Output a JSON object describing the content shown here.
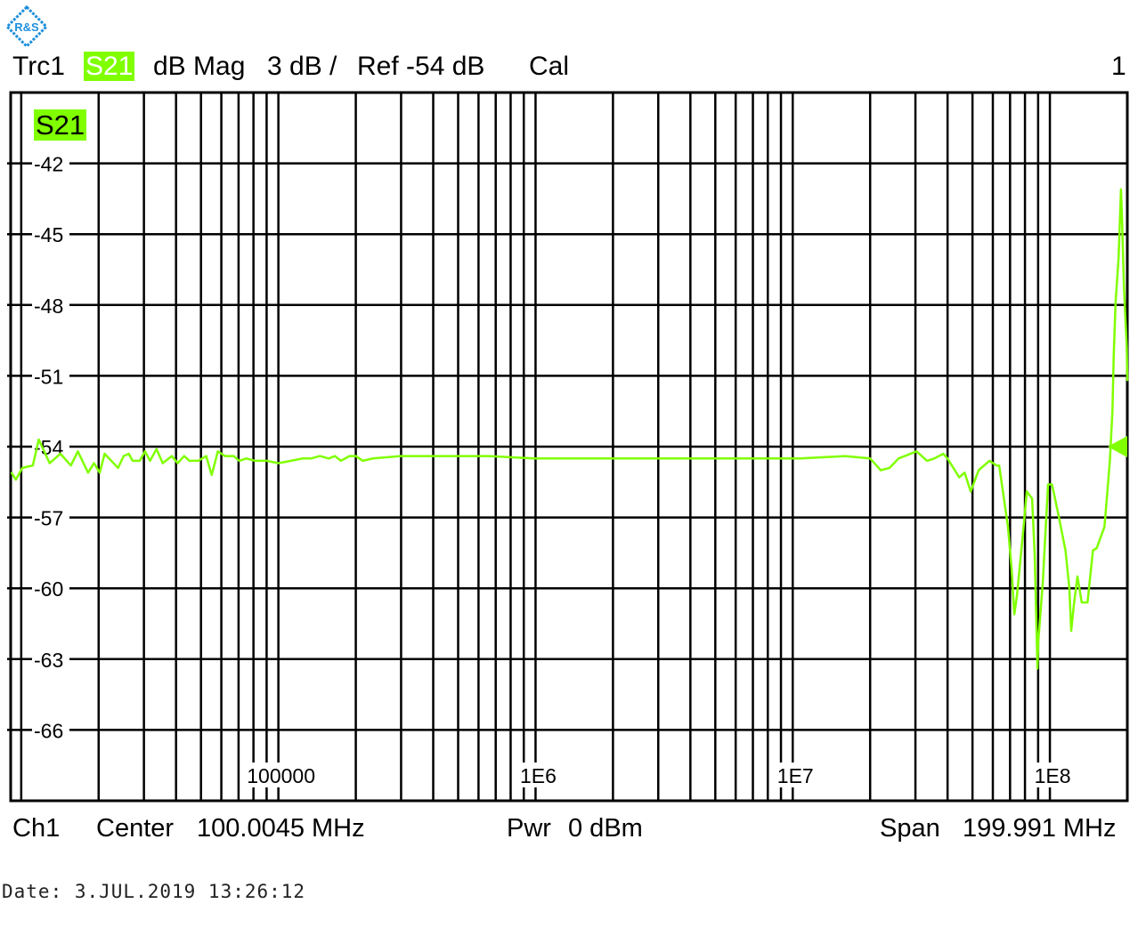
{
  "logo": {
    "text": "R&S",
    "color": "#1e8fdc"
  },
  "header": {
    "trace": "Trc1",
    "parameter": "S21",
    "format": "dB Mag",
    "scale": "3 dB /",
    "ref": "Ref -54 dB",
    "cal": "Cal",
    "window": "1"
  },
  "footer": {
    "channel": "Ch1",
    "center_label": "Center",
    "center_value": "100.0045 MHz",
    "power_label": "Pwr",
    "power_value": "0 dBm",
    "span_label": "Span",
    "span_value": "199.991 MHz"
  },
  "date": "Date: 3.JUL.2019   13:26:12",
  "colors": {
    "trace": "#80ff00",
    "grid": "#000000",
    "badge": "#80ff00"
  },
  "chart_data": {
    "type": "line",
    "trace_label": "S21",
    "x_scale": "log",
    "xlim": [
      9100,
      200000000
    ],
    "ylim": [
      -69,
      -39
    ],
    "yticks": [
      -42,
      -45,
      -48,
      -51,
      -54,
      -57,
      -60,
      -63,
      -66
    ],
    "ytick_labels": [
      "-42",
      "-45",
      "-48",
      "-51",
      "-54",
      "-57",
      "-60",
      "-63",
      "-66"
    ],
    "xticks": [
      100000,
      1000000,
      10000000,
      100000000
    ],
    "xtick_labels": [
      "100000",
      "1E6",
      "1E7",
      "1E8"
    ],
    "grid": true,
    "reference_level": -54,
    "series": [
      {
        "x": [
          9160,
          9530,
          10100,
          11100,
          11700,
          12900,
          14200,
          15600,
          16600,
          18200,
          19200,
          20200,
          21100,
          23800,
          25000,
          26200,
          27100,
          28900,
          30300,
          31700,
          33600,
          35500,
          38500,
          40600,
          43000,
          45100,
          48800,
          52400,
          55000,
          58200,
          62000,
          67100,
          70400,
          75000,
          81300,
          90200,
          100000,
          112000,
          124000,
          134000,
          145000,
          157000,
          166000,
          175000,
          189000,
          200000,
          213000,
          233000,
          298000,
          444000,
          661000,
          984000,
          1470000,
          2180000,
          3250000,
          4840000,
          7210000,
          10700000,
          16000000,
          20000000,
          22000000,
          23800000,
          25800000,
          30300000,
          33300000,
          35500000,
          38500000,
          40000000,
          44400000,
          46600000,
          49200000,
          52800000,
          58200000,
          62000000,
          63500000,
          68700000,
          71000000,
          72700000,
          74500000,
          78700000,
          81300000,
          85300000,
          87300000,
          89500000,
          90200000,
          93800000,
          96800000,
          98400000,
          102000000,
          108000000,
          115000000,
          119000000,
          121000000,
          124000000,
          128000000,
          133000000,
          140000000,
          147000000,
          152000000,
          163000000,
          165000000,
          171000000,
          175000000,
          177000000,
          180000000,
          185000000,
          189000000,
          191000000,
          194000000,
          199000000,
          200000000
        ],
        "y": [
          -55.1,
          -55.4,
          -54.9,
          -54.8,
          -53.7,
          -54.7,
          -54.3,
          -54.8,
          -54.2,
          -55.1,
          -54.7,
          -55.1,
          -54.3,
          -54.9,
          -54.4,
          -54.3,
          -54.6,
          -54.6,
          -54.2,
          -54.6,
          -54.1,
          -54.7,
          -54.4,
          -54.7,
          -54.4,
          -54.6,
          -54.6,
          -54.4,
          -55.2,
          -54.2,
          -54.4,
          -54.4,
          -54.6,
          -54.5,
          -54.6,
          -54.6,
          -54.7,
          -54.6,
          -54.5,
          -54.5,
          -54.4,
          -54.5,
          -54.4,
          -54.6,
          -54.4,
          -54.4,
          -54.6,
          -54.5,
          -54.4,
          -54.4,
          -54.4,
          -54.5,
          -54.5,
          -54.5,
          -54.5,
          -54.5,
          -54.5,
          -54.5,
          -54.4,
          -54.5,
          -55.0,
          -54.9,
          -54.5,
          -54.2,
          -54.6,
          -54.5,
          -54.3,
          -54.5,
          -55.3,
          -55.1,
          -55.9,
          -55.0,
          -54.6,
          -54.8,
          -54.8,
          -57.4,
          -59.2,
          -61.1,
          -60.3,
          -57.6,
          -55.9,
          -56.2,
          -58.6,
          -63.4,
          -62.2,
          -59.8,
          -57.0,
          -55.6,
          -55.6,
          -56.9,
          -58.4,
          -60.0,
          -61.8,
          -60.7,
          -59.5,
          -60.6,
          -60.6,
          -58.4,
          -58.3,
          -57.4,
          -56.7,
          -54.6,
          -52.5,
          -50.2,
          -47.9,
          -46.0,
          -43.1,
          -44.5,
          -47.2,
          -49.8,
          -51.2
        ]
      }
    ]
  }
}
